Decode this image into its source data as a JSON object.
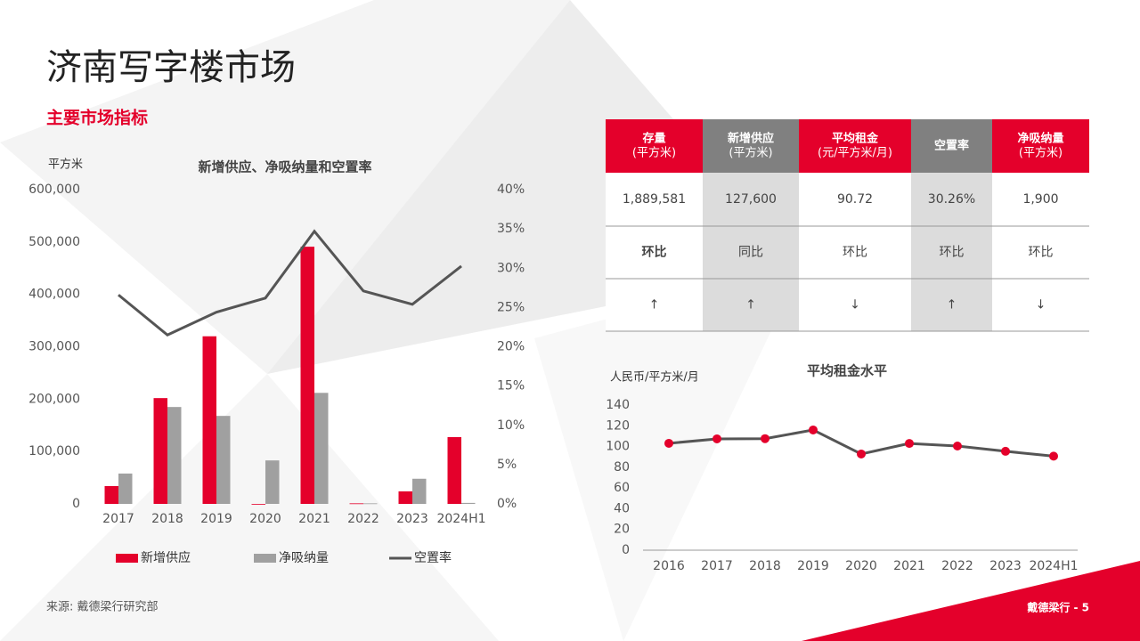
{
  "header": {
    "title": "济南写字楼市场",
    "subtitle": "主要市场指标"
  },
  "table": {
    "columns": [
      {
        "name": "存量",
        "unit": "(平方米)",
        "color": "#e4002b",
        "shade": "#ffffff"
      },
      {
        "name": "新增供应",
        "unit": "(平方米)",
        "color": "#808080",
        "shade": "#dcdcdc"
      },
      {
        "name": "平均租金",
        "unit": "(元/平方米/月)",
        "color": "#e4002b",
        "shade": "#ffffff"
      },
      {
        "name": "空置率",
        "unit": null,
        "color": "#808080",
        "shade": "#dcdcdc"
      },
      {
        "name": "净吸纳量",
        "unit": "(平方米)",
        "color": "#e4002b",
        "shade": "#ffffff"
      }
    ],
    "rows": [
      [
        "1,889,581",
        "127,600",
        "90.72",
        "30.26%",
        "1,900"
      ],
      [
        "环比",
        "同比",
        "环比",
        "环比",
        "环比"
      ],
      [
        "↑",
        "↑",
        "↓",
        "↑",
        "↓"
      ]
    ]
  },
  "chart_data": [
    {
      "type": "bar",
      "title": "新增供应、净吸纳量和空置率",
      "ylabel": "平方米",
      "categories": [
        "2017",
        "2018",
        "2019",
        "2020",
        "2021",
        "2022",
        "2023",
        "2024H1"
      ],
      "series": [
        {
          "name": "新增供应",
          "type": "bar",
          "color": "#e4002b",
          "values": [
            34000,
            202000,
            320000,
            0,
            491000,
            1000,
            24000,
            127600
          ]
        },
        {
          "name": "净吸纳量",
          "type": "bar",
          "color": "#a0a0a0",
          "values": [
            58000,
            185000,
            168000,
            83000,
            212000,
            1000,
            48000,
            1900
          ]
        },
        {
          "name": "空置率",
          "type": "line",
          "axis": "y2",
          "color": "#555555",
          "values": [
            26.6,
            21.5,
            24.4,
            26.2,
            34.7,
            27.1,
            25.4,
            30.26
          ]
        }
      ],
      "ylim": [
        0,
        600000
      ],
      "yticks": [
        0,
        {
          "value": 100000,
          "label": "100,000"
        },
        {
          "value": 200000,
          "label": "200,000"
        },
        {
          "value": 300000,
          "label": "300,000"
        },
        {
          "value": 400000,
          "label": "400,000"
        },
        {
          "value": 500000,
          "label": "500,000"
        },
        {
          "value": 600000,
          "label": "600,000"
        }
      ],
      "y2lim": [
        0,
        40
      ],
      "y2ticks": [
        {
          "value": 0,
          "label": "0%"
        },
        {
          "value": 5,
          "label": "5%"
        },
        {
          "value": 10,
          "label": "10%"
        },
        {
          "value": 15,
          "label": "15%"
        },
        {
          "value": 20,
          "label": "20%"
        },
        {
          "value": 25,
          "label": "25%"
        },
        {
          "value": 30,
          "label": "30%"
        },
        {
          "value": 35,
          "label": "35%"
        },
        {
          "value": 40,
          "label": "40%"
        }
      ],
      "grid": false,
      "legend": "bottom"
    },
    {
      "type": "line",
      "title": "平均租金水平",
      "ylabel": "人民币/平方米/月",
      "categories": [
        "2016",
        "2017",
        "2018",
        "2019",
        "2020",
        "2021",
        "2022",
        "2023",
        "2024H1"
      ],
      "series": [
        {
          "color": "#555555",
          "marker_color": "#e4002b",
          "values": [
            103.1,
            107.4,
            107.6,
            116,
            92.8,
            103,
            100.5,
            95.4,
            90.72
          ]
        }
      ],
      "ylim": [
        0,
        140
      ],
      "yticks": [
        0,
        20,
        40,
        60,
        80,
        100,
        120,
        140
      ],
      "grid": false
    }
  ],
  "footer": {
    "source": "来源: 戴德梁行研究部",
    "page": "戴德梁行 - 5"
  }
}
